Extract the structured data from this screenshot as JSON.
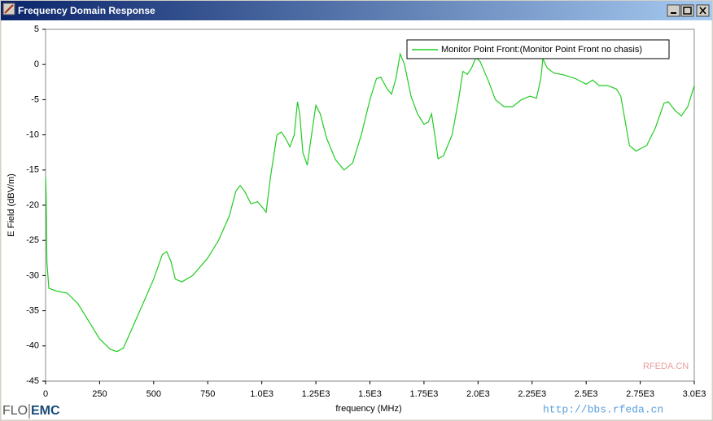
{
  "window": {
    "title": "Frequency Domain Response",
    "logo": [
      "FLO",
      "EMC"
    ],
    "watermark": [
      "RFEDA.CN",
      "http://bbs.rfeda.cn"
    ]
  },
  "chart_data": {
    "type": "line",
    "xlabel": "frequency (MHz)",
    "ylabel": "E Field (dBV/m)",
    "x": [
      0,
      3,
      6,
      15,
      50,
      100,
      150,
      200,
      250,
      300,
      330,
      360,
      400,
      450,
      500,
      540,
      560,
      580,
      600,
      630,
      680,
      750,
      800,
      850,
      880,
      900,
      920,
      950,
      980,
      1000,
      1020,
      1040,
      1070,
      1090,
      1110,
      1130,
      1150,
      1165,
      1175,
      1190,
      1210,
      1230,
      1250,
      1270,
      1300,
      1340,
      1380,
      1420,
      1460,
      1500,
      1530,
      1550,
      1580,
      1600,
      1620,
      1640,
      1660,
      1690,
      1720,
      1750,
      1770,
      1785,
      1800,
      1815,
      1840,
      1880,
      1910,
      1930,
      1950,
      1970,
      1990,
      2010,
      2050,
      2080,
      2120,
      2160,
      2200,
      2240,
      2270,
      2290,
      2300,
      2320,
      2350,
      2400,
      2450,
      2500,
      2530,
      2560,
      2600,
      2640,
      2660,
      2680,
      2700,
      2730,
      2780,
      2820,
      2860,
      2880,
      2910,
      2940,
      2970,
      3000
    ],
    "series": [
      {
        "name": "Monitor Point Front:(Monitor Point Front no chasis)",
        "color": "#22cc22",
        "values": [
          -16,
          -19,
          -28,
          -31.8,
          -32.2,
          -32.5,
          -34,
          -36.5,
          -39,
          -40.5,
          -40.8,
          -40.3,
          -37.5,
          -34,
          -30.5,
          -27,
          -26.6,
          -28,
          -30.5,
          -30.9,
          -30,
          -27.5,
          -25,
          -21.5,
          -18,
          -17.2,
          -18,
          -19.8,
          -19.5,
          -20.2,
          -21,
          -16,
          -10,
          -9.6,
          -10.5,
          -11.7,
          -10,
          -5.3,
          -7,
          -12.5,
          -14.3,
          -10,
          -5.8,
          -7,
          -10.5,
          -13.5,
          -15,
          -14,
          -10,
          -5,
          -2,
          -1.8,
          -3.5,
          -4.2,
          -2,
          1.5,
          0,
          -4.5,
          -7,
          -8.5,
          -8.2,
          -7,
          -10,
          -13.4,
          -13,
          -10,
          -5,
          -1,
          -1.4,
          -0.5,
          1,
          0.4,
          -2.5,
          -5,
          -6,
          -6,
          -5,
          -4.5,
          -4.8,
          -2,
          0.8,
          -0.5,
          -1.2,
          -1.5,
          -2,
          -2.8,
          -2.2,
          -3,
          -3,
          -3.5,
          -4.5,
          -8,
          -11.5,
          -12.3,
          -11.5,
          -9,
          -5.5,
          -5.3,
          -6.5,
          -7.3,
          -6,
          -3
        ]
      }
    ],
    "xlim": [
      0,
      3000
    ],
    "xticks": [
      0,
      250,
      500,
      750,
      {
        "value": 1000,
        "label": "1.0E3"
      },
      {
        "value": 1250,
        "label": "1.25E3"
      },
      {
        "value": 1500,
        "label": "1.5E3"
      },
      {
        "value": 1750,
        "label": "1.75E3"
      },
      {
        "value": 2000,
        "label": "2.0E3"
      },
      {
        "value": 2250,
        "label": "2.25E3"
      },
      {
        "value": 2500,
        "label": "2.5E3"
      },
      {
        "value": 2750,
        "label": "2.75E3"
      },
      {
        "value": 3000,
        "label": "3.0E3"
      }
    ],
    "ylim": [
      -45,
      5
    ],
    "yticks": [
      -45,
      -40,
      -35,
      -30,
      -25,
      -20,
      -15,
      -10,
      -5,
      0,
      5
    ],
    "grid": false,
    "legend": "upper right"
  }
}
